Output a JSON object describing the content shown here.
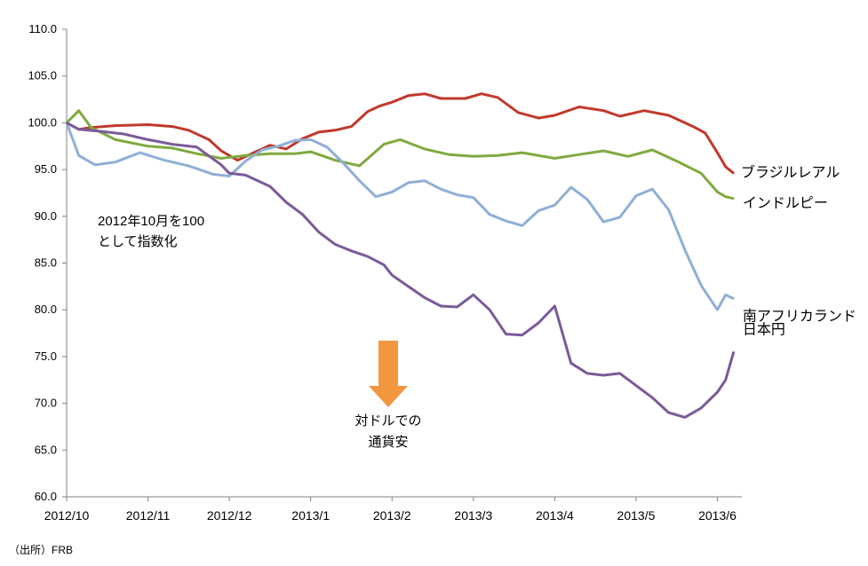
{
  "chart_data": {
    "type": "line",
    "ylim": [
      60,
      110
    ],
    "yticks": [
      "110.0",
      "105.0",
      "100.0",
      "95.0",
      "90.0",
      "85.0",
      "80.0",
      "75.0",
      "70.0",
      "65.0",
      "60.0"
    ],
    "xticks": [
      "2012/10",
      "2012/11",
      "2012/12",
      "2013/1",
      "2013/2",
      "2013/3",
      "2013/4",
      "2013/5",
      "2013/6"
    ],
    "grid": false,
    "series": [
      {
        "name": "ブラジルレアル",
        "color": "#c0392b",
        "x": [
          0,
          0.15,
          0.3,
          0.6,
          1,
          1.3,
          1.5,
          1.75,
          1.9,
          2,
          2.1,
          2.3,
          2.5,
          2.7,
          2.9,
          3.1,
          3.3,
          3.5,
          3.7,
          3.85,
          4,
          4.2,
          4.4,
          4.6,
          4.9,
          5.1,
          5.3,
          5.55,
          5.8,
          6,
          6.3,
          6.6,
          6.8,
          7.1,
          7.4,
          7.7,
          7.85,
          8,
          8.1,
          8.2
        ],
        "y": [
          100,
          99.3,
          99.5,
          99.7,
          99.8,
          99.6,
          99.2,
          98.2,
          97,
          96.5,
          96,
          96.8,
          97.6,
          97.2,
          98.3,
          99,
          99.2,
          99.6,
          101.2,
          101.8,
          102.2,
          102.9,
          103.1,
          102.6,
          102.6,
          103.1,
          102.7,
          101.1,
          100.5,
          100.8,
          101.7,
          101.3,
          100.7,
          101.3,
          100.8,
          99.6,
          98.9,
          96.8,
          95.3,
          94.6
        ]
      },
      {
        "name": "インドルピー",
        "color": "#7faa3f",
        "x": [
          0,
          0.15,
          0.3,
          0.6,
          1,
          1.3,
          1.6,
          1.9,
          2.2,
          2.5,
          2.8,
          3,
          3.3,
          3.6,
          3.9,
          4.1,
          4.4,
          4.7,
          5,
          5.3,
          5.6,
          6,
          6.3,
          6.6,
          6.9,
          7.2,
          7.5,
          7.8,
          8,
          8.1,
          8.2
        ],
        "y": [
          100,
          101.3,
          99.5,
          98.2,
          97.5,
          97.3,
          96.7,
          96.2,
          96.5,
          96.7,
          96.7,
          96.9,
          96,
          95.4,
          97.7,
          98.2,
          97.2,
          96.6,
          96.4,
          96.5,
          96.8,
          96.2,
          96.6,
          97,
          96.4,
          97.1,
          95.9,
          94.6,
          92.6,
          92.1,
          91.9
        ]
      },
      {
        "name": "南アフリカランド",
        "color": "#8fafd6",
        "x": [
          0,
          0.15,
          0.35,
          0.6,
          0.9,
          1.2,
          1.5,
          1.8,
          2,
          2.2,
          2.4,
          2.6,
          2.8,
          3,
          3.2,
          3.4,
          3.6,
          3.8,
          4,
          4.2,
          4.4,
          4.6,
          4.8,
          5,
          5.2,
          5.4,
          5.6,
          5.8,
          6,
          6.2,
          6.4,
          6.6,
          6.8,
          7,
          7.2,
          7.4,
          7.6,
          7.8,
          8,
          8.1,
          8.2
        ],
        "y": [
          100,
          96.5,
          95.5,
          95.8,
          96.8,
          96,
          95.4,
          94.5,
          94.3,
          95.9,
          97.1,
          97.5,
          98.1,
          98.2,
          97.4,
          95.7,
          93.8,
          92.1,
          92.6,
          93.6,
          93.8,
          92.9,
          92.3,
          92,
          90.2,
          89.5,
          89,
          90.6,
          91.2,
          93.1,
          91.8,
          89.4,
          89.9,
          92.2,
          92.9,
          90.7,
          86.4,
          82.6,
          80,
          81.6,
          81.2
        ]
      },
      {
        "name": "日本円",
        "color": "#7a5a9a",
        "x": [
          0,
          0.15,
          0.4,
          0.7,
          1,
          1.3,
          1.6,
          1.9,
          2,
          2.2,
          2.5,
          2.7,
          2.9,
          3.1,
          3.3,
          3.5,
          3.7,
          3.9,
          4,
          4.2,
          4.4,
          4.6,
          4.8,
          5,
          5.2,
          5.4,
          5.6,
          5.8,
          6,
          6.2,
          6.4,
          6.6,
          6.8,
          7,
          7.2,
          7.4,
          7.6,
          7.8,
          8,
          8.1,
          8.2
        ],
        "y": [
          100,
          99.3,
          99.1,
          98.8,
          98.2,
          97.7,
          97.4,
          95.5,
          94.6,
          94.4,
          93.2,
          91.5,
          90.2,
          88.3,
          87,
          86.3,
          85.7,
          84.8,
          83.7,
          82.5,
          81.3,
          80.4,
          80.3,
          81.6,
          80,
          77.4,
          77.3,
          78.6,
          80.4,
          74.3,
          73.2,
          73,
          73.2,
          71.9,
          70.6,
          69,
          68.5,
          69.5,
          71.2,
          72.5,
          75.5
        ]
      }
    ]
  },
  "annotation": {
    "line1": "2012年10月を100",
    "line2": "として指数化"
  },
  "arrow_text": {
    "line1": "対ドルでの",
    "line2": "通貨安"
  },
  "source": "（出所）FRB",
  "arrow_color": "#f29640"
}
